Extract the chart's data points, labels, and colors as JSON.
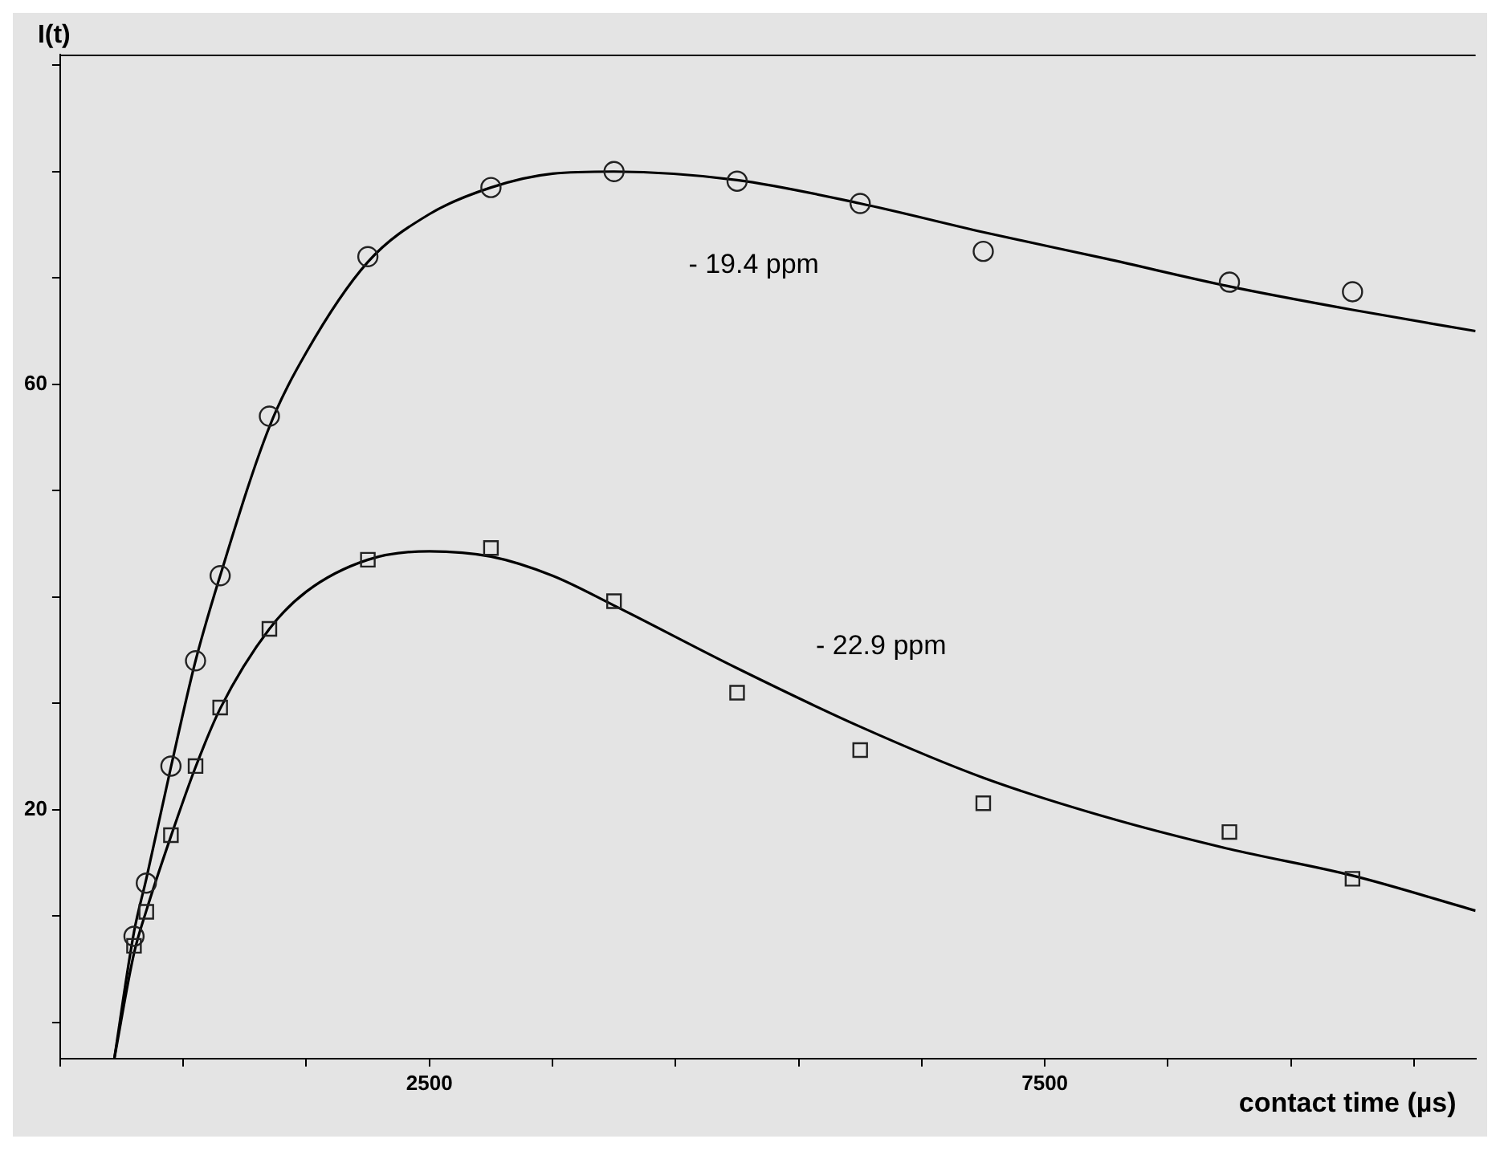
{
  "chart_data": {
    "type": "scatter",
    "xlabel": "contact time (µs)",
    "ylabel": "I(t)",
    "xlim": [
      -500,
      11000
    ],
    "ylim": [
      -3.4,
      91
    ],
    "xticks": [
      {
        "value": -500,
        "label": null
      },
      {
        "value": 500,
        "label": null
      },
      {
        "value": 1500,
        "label": null
      },
      2500,
      {
        "value": 3500,
        "label": null
      },
      {
        "value": 4500,
        "label": null
      },
      {
        "value": 5500,
        "label": null
      },
      {
        "value": 6500,
        "label": null
      },
      7500,
      {
        "value": 8500,
        "label": null
      },
      {
        "value": 9500,
        "label": null
      },
      {
        "value": 10500,
        "label": null
      }
    ],
    "yticks": [
      {
        "value": 0,
        "label": null
      },
      {
        "value": 10,
        "label": null
      },
      20,
      {
        "value": 30,
        "label": null
      },
      {
        "value": 40,
        "label": null
      },
      {
        "value": 50,
        "label": null
      },
      60,
      {
        "value": 70,
        "label": null
      },
      {
        "value": 80,
        "label": null
      },
      {
        "value": 90,
        "label": null
      }
    ],
    "grid": false,
    "legend": false,
    "series": [
      {
        "type": "scatter",
        "marker": "circle",
        "color": "#222222",
        "x": [
          100,
          200,
          400,
          600,
          800,
          1200,
          2000,
          3000,
          4000,
          5000,
          6000,
          7000,
          9000,
          10000
        ],
        "values": [
          8.1,
          13.1,
          24.1,
          34,
          42,
          57,
          72,
          78.5,
          80,
          79.1,
          77,
          72.5,
          69.6,
          68.7
        ]
      },
      {
        "type": "scatter",
        "marker": "square",
        "color": "#222222",
        "x": [
          100,
          200,
          400,
          600,
          800,
          1200,
          2000,
          3000,
          4000,
          5000,
          6000,
          7000,
          9000,
          10000
        ],
        "values": [
          7.2,
          10.4,
          17.6,
          24.1,
          29.6,
          37,
          43.5,
          44.6,
          39.6,
          31,
          25.6,
          20.6,
          17.9,
          13.5
        ]
      },
      {
        "type": "line",
        "marker": "none",
        "color": "#000000",
        "x": [
          -60,
          100,
          200,
          400,
          600,
          800,
          1200,
          1500,
          2000,
          2500,
          3000,
          3500,
          4000,
          5000,
          6000,
          7000,
          8000,
          9000,
          10000,
          11000
        ],
        "values": [
          -3.4,
          8.5,
          13.5,
          24,
          34,
          42,
          56,
          63,
          71.5,
          76,
          78.5,
          79.8,
          80,
          79.2,
          77,
          74.3,
          71.8,
          69.2,
          67,
          65
        ]
      },
      {
        "type": "line",
        "marker": "none",
        "color": "#000000",
        "x": [
          -60,
          100,
          200,
          400,
          600,
          800,
          1200,
          1500,
          2000,
          2500,
          3000,
          3500,
          4000,
          5000,
          6000,
          7000,
          8000,
          9000,
          10000,
          11000
        ],
        "values": [
          -3.4,
          6.5,
          10.5,
          17.5,
          24,
          29.5,
          37,
          40.5,
          43.5,
          44.3,
          43.8,
          42,
          39.2,
          33.3,
          27.8,
          23,
          19.3,
          16.3,
          13.8,
          10.5
        ]
      }
    ],
    "annotations": [
      "- 19.4 ppm",
      "- 22.9 ppm"
    ]
  }
}
